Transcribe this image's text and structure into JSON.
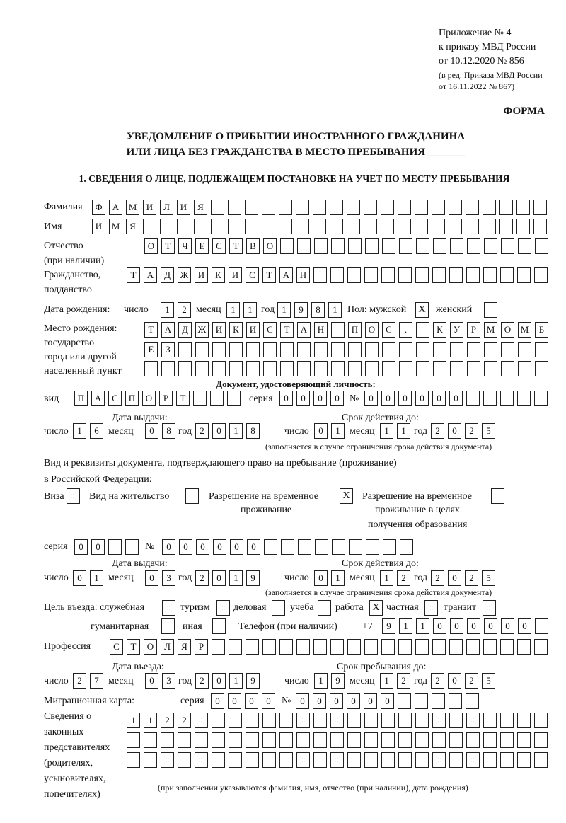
{
  "header": {
    "appendix": "Приложение № 4",
    "order": "к приказу МВД России",
    "order_date": "от 10.12.2020 № 856",
    "revision1": "(в ред. Приказа МВД России",
    "revision2": "от 16.11.2022 № 867)",
    "form_label": "ФОРМА",
    "title1": "УВЕДОМЛЕНИЕ О ПРИБЫТИИ ИНОСТРАННОГО ГРАЖДАНИНА",
    "title2": "ИЛИ ЛИЦА БЕЗ ГРАЖДАНСТВА В МЕСТО ПРЕБЫВАНИЯ _______",
    "section1": "1. СВЕДЕНИЯ О ЛИЦЕ, ПОДЛЕЖАЩЕМ ПОСТАНОВКЕ НА УЧЕТ ПО МЕСТУ ПРЕБЫВАНИЯ"
  },
  "labels": {
    "surname": "Фамилия",
    "name": "Имя",
    "patronymic": "Отчество",
    "patronymic_note": "(при наличии)",
    "citizenship1": "Гражданство,",
    "citizenship2": "подданство",
    "birth_date": "Дата рождения:",
    "day": "число",
    "month": "месяц",
    "year": "год",
    "sex_male": "Пол: мужской",
    "sex_female": "женский",
    "birthplace1": "Место рождения:",
    "birthplace2": "государство",
    "birthplace3": "город или другой",
    "birthplace4": "населенный пункт",
    "id_doc": "Документ, удостоверяющий личность:",
    "kind": "вид",
    "series": "серия",
    "number": "№",
    "issue_date": "Дата выдачи:",
    "valid_until": "Срок действия до:",
    "validity_note": "(заполняется в случае ограничения срока действия документа)",
    "permit_doc1": "Вид и реквизиты документа, подтверждающего право на пребывание (проживание)",
    "permit_doc2": "в Российской Федерации:",
    "visa": "Виза",
    "residence": "Вид на жительство",
    "temp_residence1": "Разрешение на временное",
    "temp_residence2": "проживание",
    "temp_edu1": "Разрешение на временное",
    "temp_edu2": "проживание в целях",
    "temp_edu3": "получения образования",
    "purpose": "Цель въезда: служебная",
    "tourism": "туризм",
    "business": "деловая",
    "study": "учеба",
    "work": "работа",
    "private": "частная",
    "transit": "транзит",
    "humanitarian": "гуманитарная",
    "other": "иная",
    "phone": "Телефон (при наличии)",
    "phone_prefix": "+7",
    "profession": "Профессия",
    "entry_date": "Дата въезда:",
    "stay_until": "Срок пребывания до:",
    "migration_card": "Миграционная карта:",
    "reps1": "Сведения о",
    "reps2": "законных",
    "reps3": "представителях",
    "reps4": "(родителях,",
    "reps5": "усыновителях,",
    "reps6": "попечителях)",
    "reps_note": "(при заполнении указываются фамилия, имя, отчество (при наличии), дата рождения)"
  },
  "person": {
    "surname": "ФАМИЛИЯ",
    "name": "ИМЯ",
    "patronymic": "ОТЧЕСТВО",
    "citizenship": "ТАДЖИКИСТАН",
    "birth_day": "12",
    "birth_month": "11",
    "birth_year": "1981",
    "sex_male": "X",
    "sex_female": "",
    "birthplace_line1": "ТАДЖИКИСТАН ПОС. КУРМОМБ",
    "birthplace_line2": "ЕЗ",
    "birthplace_line3": "",
    "id_kind": "ПАСПОРТ",
    "id_series": "0000",
    "id_number": "000000",
    "id_issue_day": "16",
    "id_issue_month": "08",
    "id_issue_year": "2018",
    "id_valid_day": "01",
    "id_valid_month": "11",
    "id_valid_year": "2025",
    "permit_visa": "",
    "permit_residence": "",
    "permit_temp": "X",
    "permit_temp_edu": "",
    "permit_series": "00",
    "permit_number": "000000",
    "permit_issue_day": "01",
    "permit_issue_month": "03",
    "permit_issue_year": "2019",
    "permit_valid_day": "01",
    "permit_valid_month": "12",
    "permit_valid_year": "2025",
    "purpose_service": "",
    "purpose_tourism": "",
    "purpose_business": "",
    "purpose_study": "",
    "purpose_work": "X",
    "purpose_private": "",
    "purpose_transit": "",
    "purpose_humanitarian": "",
    "purpose_other": "",
    "phone": "911000000",
    "profession": "СТОЛЯР",
    "entry_day": "27",
    "entry_month": "03",
    "entry_year": "2019",
    "stay_day": "19",
    "stay_month": "12",
    "stay_year": "2025",
    "mc_series": "0000",
    "mc_number": "000000",
    "reps_line1": "1122",
    "reps_line2": "",
    "reps_line3": ""
  }
}
